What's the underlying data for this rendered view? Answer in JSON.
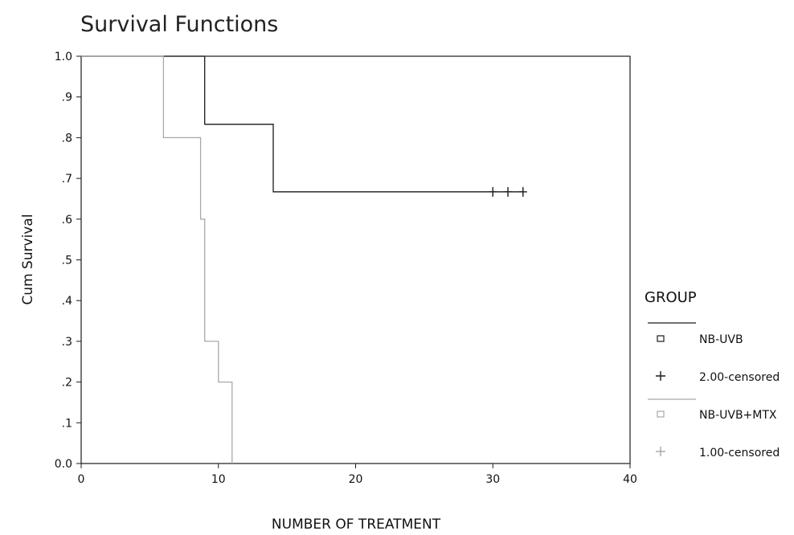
{
  "chart_data": {
    "type": "line",
    "step": true,
    "title": "Survival Functions",
    "xlabel": "NUMBER OF TREATMENT",
    "ylabel": "Cum Survival",
    "xlim": [
      0,
      40
    ],
    "ylim": [
      0,
      1
    ],
    "x_ticks": [
      "0",
      "10",
      "20",
      "30",
      "40"
    ],
    "y_ticks": [
      "0.0",
      ".1",
      ".2",
      ".3",
      ".4",
      ".5",
      ".6",
      ".7",
      ".8",
      ".9",
      "1.0"
    ],
    "grid": false,
    "legend": {
      "title": "GROUP",
      "position": "right",
      "entries": [
        {
          "label": "NB-UVB",
          "marker": "square-icon",
          "color": "#1a1a1a"
        },
        {
          "label": "2.00-censored",
          "marker": "plus-icon",
          "color": "#1a1a1a"
        },
        {
          "label": "NB-UVB+MTX",
          "marker": "square-icon",
          "color": "#a8a8a8"
        },
        {
          "label": "1.00-censored",
          "marker": "plus-icon",
          "color": "#a8a8a8"
        }
      ]
    },
    "series": [
      {
        "name": "NB-UVB",
        "color": "#1a1a1a",
        "steps": [
          [
            0,
            1.0
          ],
          [
            9,
            1.0
          ],
          [
            9,
            0.833
          ],
          [
            14,
            0.833
          ],
          [
            14,
            0.667
          ],
          [
            32.2,
            0.667
          ]
        ],
        "censored_name": "2.00-censored",
        "censored": [
          [
            30,
            0.667
          ],
          [
            31.1,
            0.667
          ],
          [
            32.2,
            0.667
          ]
        ]
      },
      {
        "name": "NB-UVB+MTX",
        "color": "#a8a8a8",
        "steps": [
          [
            0,
            1.0
          ],
          [
            6,
            1.0
          ],
          [
            6,
            0.8
          ],
          [
            8.7,
            0.8
          ],
          [
            8.7,
            0.6
          ],
          [
            9,
            0.6
          ],
          [
            9,
            0.3
          ],
          [
            10,
            0.3
          ],
          [
            10,
            0.2
          ],
          [
            11,
            0.2
          ],
          [
            11,
            0.0
          ]
        ],
        "censored_name": "1.00-censored",
        "censored": []
      }
    ]
  }
}
